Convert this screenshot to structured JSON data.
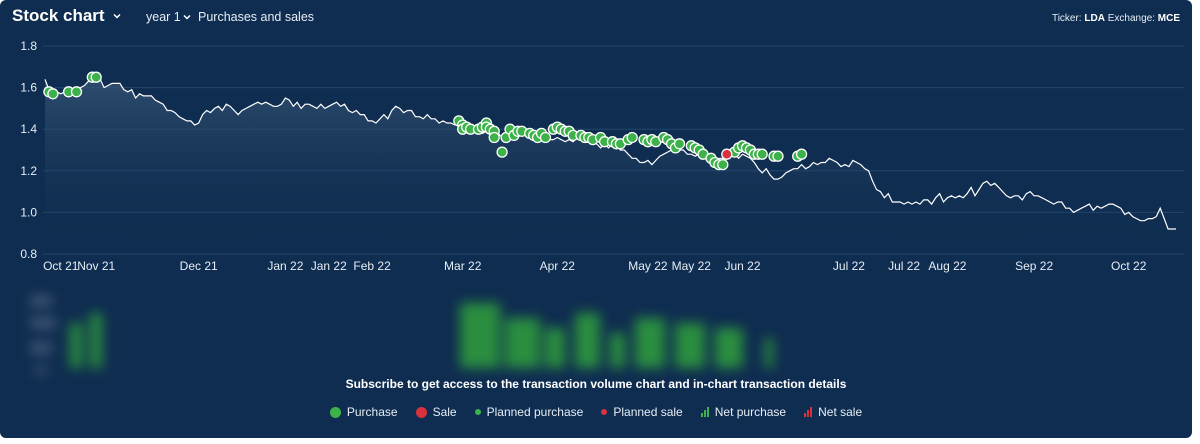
{
  "header": {
    "title": "Stock chart",
    "period": "year 1",
    "view": "Purchases and sales",
    "ticker_label": "Ticker:",
    "ticker_value": "LDA",
    "exchange_label": "Exchange:",
    "exchange_value": "MCE"
  },
  "subscribe_message": "Subscribe to get access to the transaction volume chart and in-chart transaction details",
  "legend": {
    "purchase": "Purchase",
    "sale": "Sale",
    "planned_purchase": "Planned purchase",
    "planned_sale": "Planned sale",
    "net_purchase": "Net purchase",
    "net_sale": "Net sale"
  },
  "colors": {
    "background": "#0f2d50",
    "line": "#ffffff",
    "purchase": "#3db24a",
    "sale": "#d8323d",
    "gridline": "#22466e"
  },
  "chart_data": {
    "type": "line",
    "title": "",
    "xlabel": "",
    "ylabel": "",
    "ylim": [
      0.8,
      1.8
    ],
    "yticks": [
      0.8,
      1.0,
      1.2,
      1.4,
      1.6,
      1.8
    ],
    "grid": true,
    "x_tick_labels": [
      "Oct 21",
      "Nov 21",
      "Dec 21",
      "Jan 22",
      "Jan 22",
      "Feb 22",
      "Mar 22",
      "Apr 22",
      "May 22",
      "May 22",
      "Jun 22",
      "Jul 22",
      "Jul 22",
      "Aug 22",
      "Sep 22",
      "Oct 22"
    ],
    "x_tick_index": [
      4,
      13,
      39,
      61,
      72,
      83,
      106,
      130,
      153,
      164,
      177,
      204,
      218,
      229,
      251,
      275
    ],
    "series": [
      {
        "values": [
          1.64,
          1.59,
          1.58,
          1.58,
          1.57,
          1.58,
          1.59,
          1.58,
          1.59,
          1.6,
          1.61,
          1.63,
          1.65,
          1.66,
          1.64,
          1.6,
          1.61,
          1.62,
          1.62,
          1.62,
          1.59,
          1.58,
          1.59,
          1.55,
          1.57,
          1.56,
          1.56,
          1.56,
          1.54,
          1.53,
          1.52,
          1.49,
          1.49,
          1.48,
          1.46,
          1.45,
          1.44,
          1.44,
          1.42,
          1.43,
          1.47,
          1.49,
          1.48,
          1.5,
          1.51,
          1.49,
          1.52,
          1.51,
          1.49,
          1.47,
          1.49,
          1.5,
          1.51,
          1.52,
          1.53,
          1.52,
          1.53,
          1.52,
          1.51,
          1.51,
          1.52,
          1.55,
          1.54,
          1.51,
          1.53,
          1.5,
          1.52,
          1.52,
          1.51,
          1.5,
          1.52,
          1.5,
          1.51,
          1.52,
          1.53,
          1.51,
          1.52,
          1.49,
          1.48,
          1.49,
          1.47,
          1.47,
          1.44,
          1.44,
          1.43,
          1.45,
          1.47,
          1.45,
          1.49,
          1.51,
          1.5,
          1.48,
          1.49,
          1.49,
          1.46,
          1.46,
          1.45,
          1.47,
          1.45,
          1.45,
          1.43,
          1.44,
          1.43,
          1.43,
          1.42,
          1.43,
          1.42,
          1.4,
          1.42,
          1.41,
          1.41,
          1.38,
          1.39,
          1.38,
          1.37,
          1.38,
          1.36,
          1.37,
          1.38,
          1.39,
          1.4,
          1.39,
          1.4,
          1.38,
          1.36,
          1.37,
          1.37,
          1.35,
          1.35,
          1.35,
          1.36,
          1.35,
          1.34,
          1.35,
          1.34,
          1.36,
          1.35,
          1.34,
          1.35,
          1.33,
          1.33,
          1.31,
          1.33,
          1.31,
          1.33,
          1.32,
          1.3,
          1.3,
          1.28,
          1.26,
          1.26,
          1.24,
          1.24,
          1.25,
          1.23,
          1.25,
          1.27,
          1.28,
          1.29,
          1.3,
          1.3,
          1.3,
          1.3,
          1.28,
          1.28,
          1.27,
          1.28,
          1.27,
          1.26,
          1.27,
          1.25,
          1.26,
          1.26,
          1.27,
          1.29,
          1.28,
          1.26,
          1.28,
          1.27,
          1.26,
          1.24,
          1.21,
          1.19,
          1.21,
          1.18,
          1.16,
          1.16,
          1.17,
          1.19,
          1.2,
          1.21,
          1.21,
          1.23,
          1.21,
          1.22,
          1.24,
          1.23,
          1.24,
          1.24,
          1.26,
          1.25,
          1.24,
          1.22,
          1.23,
          1.22,
          1.25,
          1.24,
          1.23,
          1.21,
          1.2,
          1.15,
          1.11,
          1.1,
          1.07,
          1.09,
          1.05,
          1.05,
          1.05,
          1.04,
          1.05,
          1.04,
          1.05,
          1.04,
          1.06,
          1.06,
          1.04,
          1.07,
          1.09,
          1.05,
          1.07,
          1.08,
          1.07,
          1.08,
          1.07,
          1.09,
          1.12,
          1.08,
          1.11,
          1.14,
          1.15,
          1.13,
          1.14,
          1.12,
          1.1,
          1.08,
          1.07,
          1.08,
          1.08,
          1.06,
          1.09,
          1.1,
          1.08,
          1.08,
          1.07,
          1.06,
          1.05,
          1.04,
          1.05,
          1.05,
          1.02,
          1.02,
          1.0,
          1.01,
          1.02,
          1.03,
          1.04,
          1.01,
          1.03,
          1.02,
          1.03,
          1.04,
          1.04,
          1.03,
          1.02,
          0.99,
          1.0,
          0.98,
          0.97,
          0.96,
          0.96,
          0.97,
          0.97,
          0.98,
          1.02,
          0.97,
          0.92,
          0.92,
          0.92
        ]
      }
    ],
    "purchases": [
      [
        1,
        1.58
      ],
      [
        2,
        1.57
      ],
      [
        6,
        1.58
      ],
      [
        8,
        1.58
      ],
      [
        12,
        1.65
      ],
      [
        13,
        1.65
      ],
      [
        105,
        1.44
      ],
      [
        106,
        1.42
      ],
      [
        106,
        1.4
      ],
      [
        107,
        1.41
      ],
      [
        108,
        1.4
      ],
      [
        110,
        1.4
      ],
      [
        111,
        1.41
      ],
      [
        112,
        1.43
      ],
      [
        112,
        1.41
      ],
      [
        113,
        1.4
      ],
      [
        114,
        1.39
      ],
      [
        114,
        1.36
      ],
      [
        116,
        1.29
      ],
      [
        117,
        1.36
      ],
      [
        118,
        1.4
      ],
      [
        119,
        1.37
      ],
      [
        120,
        1.39
      ],
      [
        121,
        1.39
      ],
      [
        123,
        1.38
      ],
      [
        124,
        1.37
      ],
      [
        125,
        1.36
      ],
      [
        126,
        1.38
      ],
      [
        127,
        1.36
      ],
      [
        129,
        1.4
      ],
      [
        130,
        1.41
      ],
      [
        131,
        1.4
      ],
      [
        132,
        1.39
      ],
      [
        133,
        1.39
      ],
      [
        134,
        1.37
      ],
      [
        136,
        1.37
      ],
      [
        137,
        1.36
      ],
      [
        138,
        1.36
      ],
      [
        139,
        1.35
      ],
      [
        141,
        1.36
      ],
      [
        142,
        1.34
      ],
      [
        144,
        1.34
      ],
      [
        145,
        1.33
      ],
      [
        146,
        1.33
      ],
      [
        148,
        1.35
      ],
      [
        149,
        1.36
      ],
      [
        152,
        1.35
      ],
      [
        153,
        1.34
      ],
      [
        154,
        1.35
      ],
      [
        155,
        1.34
      ],
      [
        157,
        1.36
      ],
      [
        158,
        1.35
      ],
      [
        159,
        1.33
      ],
      [
        160,
        1.31
      ],
      [
        161,
        1.33
      ],
      [
        164,
        1.32
      ],
      [
        165,
        1.31
      ],
      [
        166,
        1.3
      ],
      [
        167,
        1.28
      ],
      [
        169,
        1.26
      ],
      [
        170,
        1.24
      ],
      [
        171,
        1.23
      ],
      [
        172,
        1.23
      ],
      [
        175,
        1.29
      ],
      [
        176,
        1.31
      ],
      [
        177,
        1.32
      ],
      [
        178,
        1.31
      ],
      [
        179,
        1.3
      ],
      [
        180,
        1.28
      ],
      [
        181,
        1.28
      ],
      [
        182,
        1.28
      ],
      [
        185,
        1.27
      ],
      [
        186,
        1.27
      ],
      [
        191,
        1.27
      ],
      [
        192,
        1.28
      ]
    ],
    "sales": [
      [
        173,
        1.28
      ]
    ]
  }
}
